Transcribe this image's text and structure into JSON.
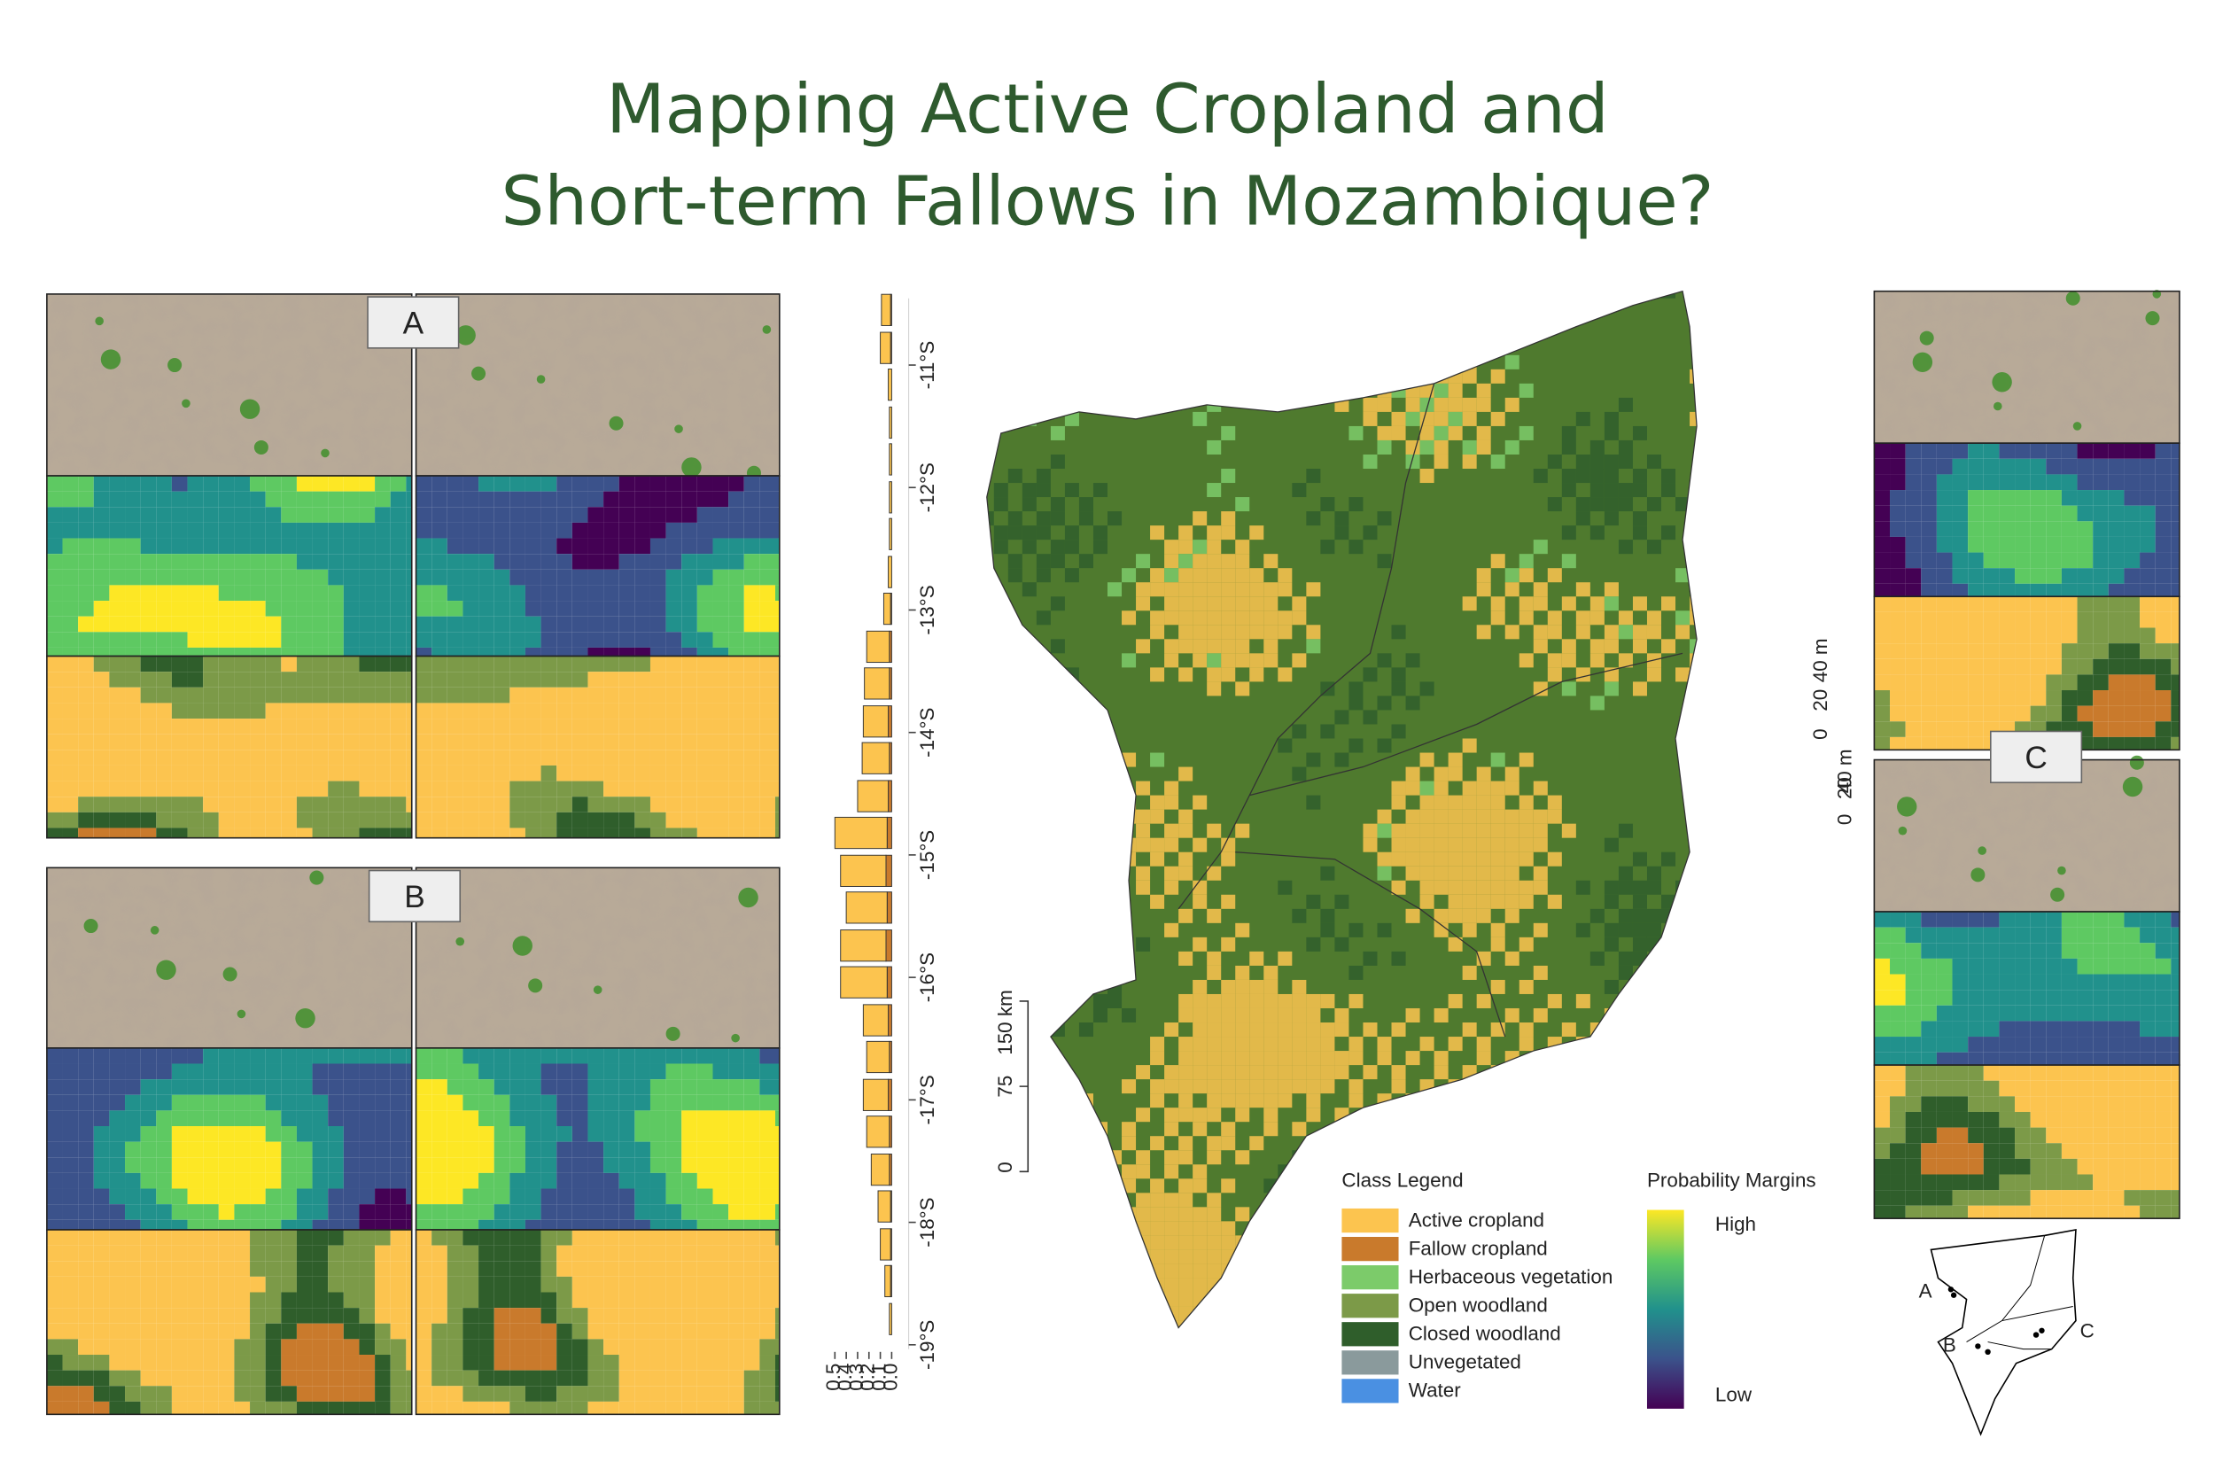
{
  "title_lines": [
    "Mapping Active Cropland and",
    "Short-term Fallows in Mozambique?"
  ],
  "panel_labels": [
    "A",
    "B",
    "C"
  ],
  "lat_chart": {
    "type": "bar",
    "orientation": "horizontal",
    "lat": [
      -10.55,
      -10.86,
      -11.16,
      -11.47,
      -11.77,
      -12.08,
      -12.38,
      -12.69,
      -12.99,
      -13.3,
      -13.6,
      -13.91,
      -14.21,
      -14.52,
      -14.82,
      -15.13,
      -15.43,
      -15.74,
      -16.04,
      -16.35,
      -16.65,
      -16.96,
      -17.26,
      -17.57,
      -17.87,
      -18.18,
      -18.48,
      -18.79
    ],
    "series": [
      {
        "color": "#c97a2c",
        "values": [
          0.01,
          0.01,
          0,
          0,
          0,
          0,
          0,
          0,
          0.01,
          0.02,
          0.02,
          0.03,
          0.02,
          0.03,
          0.04,
          0.05,
          0.04,
          0.05,
          0.04,
          0.03,
          0.02,
          0.03,
          0.02,
          0.02,
          0.01,
          0.01,
          0.01,
          0
        ]
      },
      {
        "color": "#fcc44f",
        "values": [
          0.08,
          0.09,
          0.03,
          0.02,
          0.02,
          0.02,
          0.02,
          0.03,
          0.06,
          0.2,
          0.22,
          0.22,
          0.24,
          0.27,
          0.46,
          0.4,
          0.36,
          0.4,
          0.41,
          0.22,
          0.2,
          0.22,
          0.2,
          0.16,
          0.11,
          0.09,
          0.05,
          0.02
        ]
      }
    ],
    "xlim": [
      0,
      0.5
    ],
    "xticks": [
      0.5,
      0.4,
      0.3,
      0.2,
      0.1,
      {
        "value": 0,
        "label": "0.0"
      }
    ],
    "yticks": [
      {
        "value": -11,
        "label": "-11°S"
      },
      {
        "value": -12,
        "label": "-12°S"
      },
      {
        "value": -13,
        "label": "-13°S"
      },
      {
        "value": -14,
        "label": "-14°S"
      },
      {
        "value": -15,
        "label": "-15°S"
      },
      {
        "value": -16,
        "label": "-16°S"
      },
      {
        "value": -17,
        "label": "-17°S"
      },
      {
        "value": -18,
        "label": "-18°S"
      },
      {
        "value": -19,
        "label": "-19°S"
      }
    ]
  },
  "map_scale": [
    "0",
    "75",
    "150 km"
  ],
  "detail_scale": [
    "0",
    "20",
    "40 m"
  ],
  "class_legend": {
    "title": "Class Legend",
    "items": [
      {
        "label": "Active cropland",
        "color": "#fcc44f"
      },
      {
        "label": "Fallow cropland",
        "color": "#c97a2c"
      },
      {
        "label": "Herbaceous vegetation",
        "color": "#7ccb6a"
      },
      {
        "label": "Open woodland",
        "color": "#7c9a48"
      },
      {
        "label": "Closed woodland",
        "color": "#2f5e2b"
      },
      {
        "label": "Unvegetated",
        "color": "#8a9a9c"
      },
      {
        "label": "Water",
        "color": "#4a90e2"
      }
    ]
  },
  "probability_legend": {
    "title": "Probability Margins",
    "high": "High",
    "low": "Low",
    "colors": [
      "#440154",
      "#3b528b",
      "#21918c",
      "#5ec962",
      "#fde725"
    ]
  },
  "inset_labels": [
    "A",
    "B",
    "C"
  ]
}
